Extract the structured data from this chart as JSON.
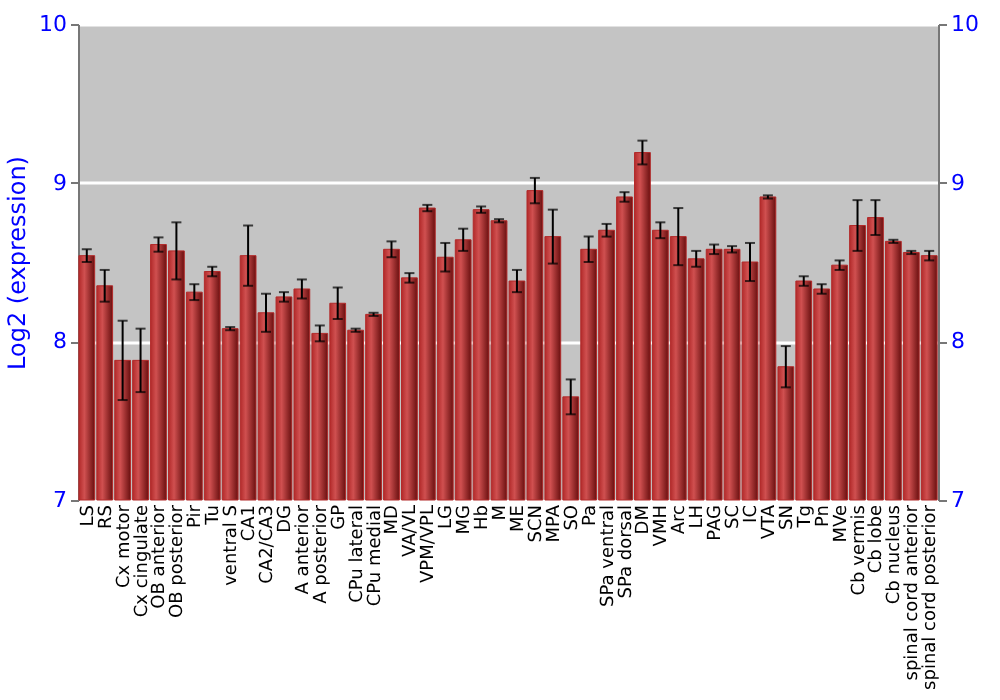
{
  "chart_data": {
    "type": "bar",
    "ylabel": "Log2 (expression)",
    "categories": [
      "LS",
      "RS",
      "Cx motor",
      "Cx cingulate",
      "OB anterior",
      "OB posterior",
      "Pir",
      "Tu",
      "ventral S",
      "CA1",
      "CA2/CA3",
      "DG",
      "A anterior",
      "A posterior",
      "GP",
      "CPu lateral",
      "CPu medial",
      "MD",
      "VA/VL",
      "VPM/VPL",
      "LG",
      "MG",
      "Hb",
      "M",
      "ME",
      "SCN",
      "MPA",
      "SO",
      "Pa",
      "SPa ventral",
      "SPa dorsal",
      "DM",
      "VMH",
      "Arc",
      "LH",
      "PAG",
      "SC",
      "IC",
      "VTA",
      "SN",
      "Tg",
      "Pn",
      "MVe",
      "Cb vermis",
      "Cb lobe",
      "Cb nucleus",
      "spinal cord anterior",
      "spinal cord posterior"
    ],
    "values": [
      8.54,
      8.35,
      7.88,
      7.88,
      8.61,
      8.57,
      8.31,
      8.44,
      8.08,
      8.54,
      8.18,
      8.28,
      8.33,
      8.05,
      8.24,
      8.07,
      8.17,
      8.58,
      8.4,
      8.84,
      8.53,
      8.64,
      8.83,
      8.76,
      8.38,
      8.95,
      8.66,
      7.65,
      8.58,
      8.7,
      8.91,
      9.19,
      8.7,
      8.66,
      8.52,
      8.58,
      8.58,
      8.5,
      8.91,
      7.84,
      8.38,
      8.33,
      8.48,
      8.73,
      8.78,
      8.63,
      8.56,
      8.54
    ],
    "errors": [
      0.04,
      0.1,
      0.25,
      0.2,
      0.045,
      0.18,
      0.05,
      0.03,
      0.01,
      0.19,
      0.12,
      0.03,
      0.06,
      0.05,
      0.1,
      0.01,
      0.01,
      0.05,
      0.03,
      0.02,
      0.09,
      0.07,
      0.02,
      0.01,
      0.07,
      0.08,
      0.17,
      0.11,
      0.08,
      0.04,
      0.03,
      0.075,
      0.05,
      0.18,
      0.05,
      0.03,
      0.02,
      0.12,
      0.01,
      0.13,
      0.03,
      0.03,
      0.03,
      0.16,
      0.11,
      0.01,
      0.01,
      0.03
    ],
    "color": "#b22a2a",
    "ylim": [
      7,
      10
    ],
    "yticks": [
      7,
      8,
      9,
      10
    ],
    "y2lim": [
      7,
      10
    ],
    "y2ticks": [
      7,
      8,
      9,
      10
    ],
    "grid": "y"
  }
}
